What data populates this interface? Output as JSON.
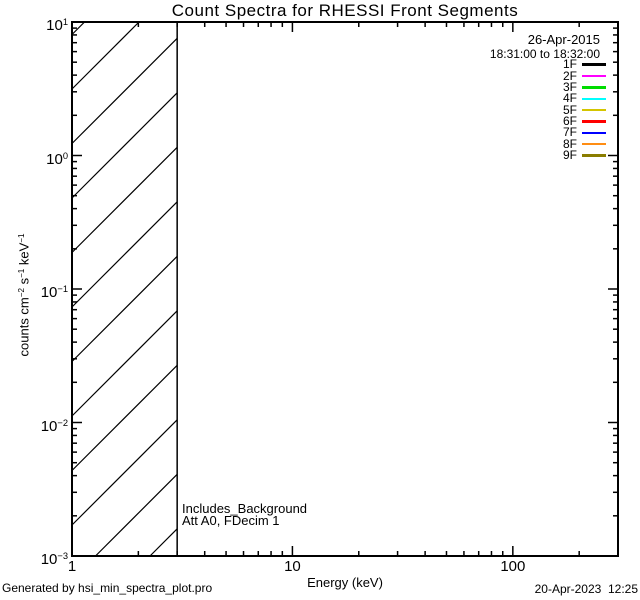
{
  "chart_data": {
    "type": "line",
    "title": "Count Spectra for RHESSI Front Segments",
    "xlabel": "Energy (keV)",
    "ylabel": "counts cm^-2 s^-1 keV^-1",
    "xscale": "log",
    "yscale": "log",
    "xlim": [
      1,
      300
    ],
    "ylim": [
      0.001,
      10
    ],
    "grid": false,
    "x_major_ticks": [
      {
        "value": 1,
        "label": "1"
      },
      {
        "value": 10,
        "label": "10"
      },
      {
        "value": 100,
        "label": "100"
      }
    ],
    "y_major_ticks": [
      {
        "value": 10,
        "label": "10^1"
      },
      {
        "value": 1,
        "label": "10^0"
      },
      {
        "value": 0.1,
        "label": "10^-1"
      },
      {
        "value": 0.01,
        "label": "10^-2"
      },
      {
        "value": 0.001,
        "label": "10^-3"
      }
    ],
    "hatched_region": {
      "x_range": [
        1,
        3
      ],
      "pattern": "diagonal-45deg-hatch"
    },
    "legend": {
      "position": "top-right",
      "date": "26-Apr-2015",
      "time_range": "18:31:00 to 18:32:00",
      "entries": [
        {
          "label": "1F",
          "color": "#000000"
        },
        {
          "label": "2F",
          "color": "#ff00ff"
        },
        {
          "label": "3F",
          "color": "#00dc00"
        },
        {
          "label": "4F",
          "color": "#00ffff"
        },
        {
          "label": "5F",
          "color": "#d4c500"
        },
        {
          "label": "6F",
          "color": "#ff0000"
        },
        {
          "label": "7F",
          "color": "#0000ff"
        },
        {
          "label": "8F",
          "color": "#ff8d13"
        },
        {
          "label": "9F",
          "color": "#8a7d00"
        }
      ]
    },
    "annotations": [
      "Includes_Background",
      "Att A0, FDecim 1"
    ]
  },
  "footer": {
    "generated_by": "Generated by hsi_min_spectra_plot.pro",
    "timestamp": "20-Apr-2023  12:25"
  }
}
